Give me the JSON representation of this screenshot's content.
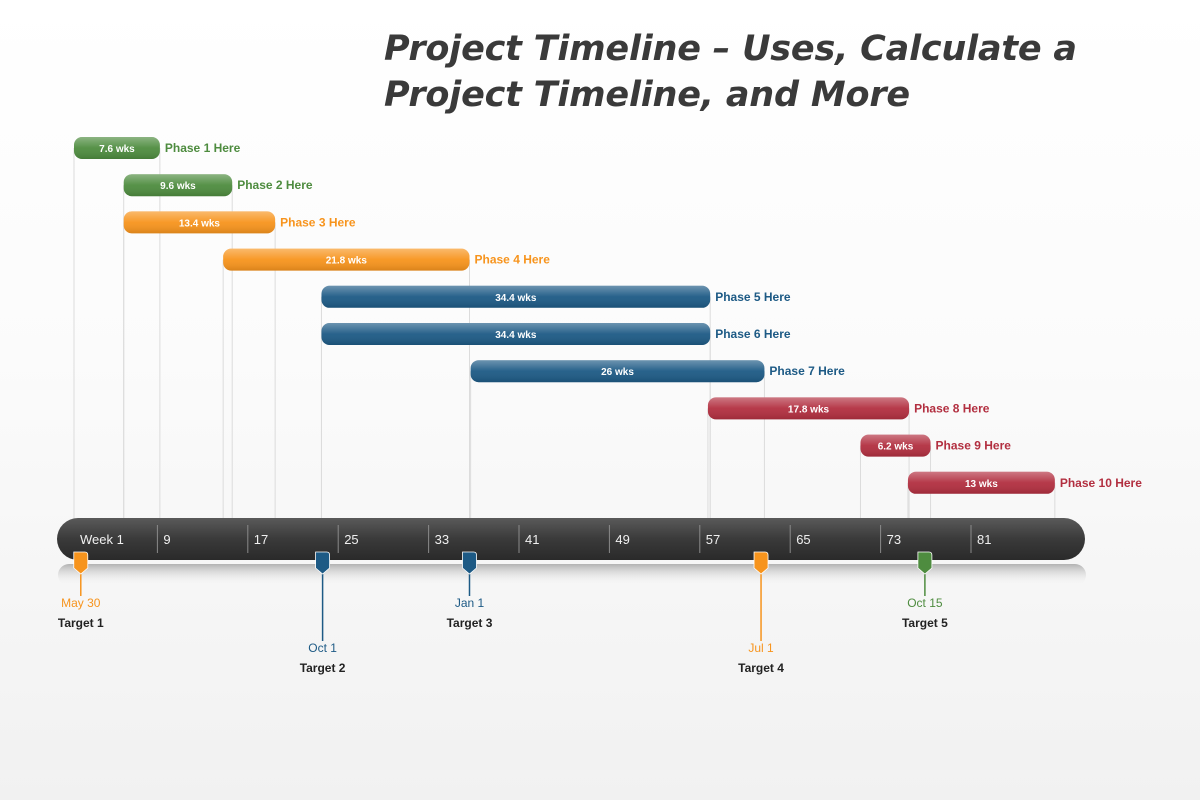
{
  "title": "Project Timeline – Uses, Calculate a Project Timeline, and More",
  "colors": {
    "green": "#4e8c3f",
    "orange": "#f7941d",
    "blue": "#1d5a85",
    "red": "#b22f40",
    "axis_band": "#3c3c3c",
    "gridline": "#dcdcdc"
  },
  "chart_data": {
    "type": "gantt",
    "axis_label_prefix": "Week",
    "x_ticks": [
      "1",
      "9",
      "17",
      "25",
      "33",
      "41",
      "49",
      "57",
      "65",
      "73",
      "81"
    ],
    "x_range": [
      1,
      89
    ],
    "phases": [
      {
        "name": "Phase 1 Here",
        "start": 1,
        "weeks": 7.6,
        "label": "7.6 wks",
        "color": "green"
      },
      {
        "name": "Phase 2 Here",
        "start": 5.4,
        "weeks": 9.6,
        "label": "9.6 wks",
        "color": "green"
      },
      {
        "name": "Phase 3 Here",
        "start": 5.4,
        "weeks": 13.4,
        "label": "13.4 wks",
        "color": "orange"
      },
      {
        "name": "Phase 4 Here",
        "start": 14.2,
        "weeks": 21.8,
        "label": "21.8 wks",
        "color": "orange"
      },
      {
        "name": "Phase 5 Here",
        "start": 22.9,
        "weeks": 34.4,
        "label": "34.4 wks",
        "color": "blue"
      },
      {
        "name": "Phase 6 Here",
        "start": 22.9,
        "weeks": 34.4,
        "label": "34.4 wks",
        "color": "blue"
      },
      {
        "name": "Phase 7 Here",
        "start": 36.1,
        "weeks": 26,
        "label": "26 wks",
        "color": "blue"
      },
      {
        "name": "Phase 8 Here",
        "start": 57.1,
        "weeks": 17.8,
        "label": "17.8 wks",
        "color": "red"
      },
      {
        "name": "Phase 9 Here",
        "start": 70.6,
        "weeks": 6.2,
        "label": "6.2 wks",
        "color": "red"
      },
      {
        "name": "Phase 10 Here",
        "start": 74.8,
        "weeks": 13,
        "label": "13 wks",
        "color": "red"
      }
    ],
    "milestones": [
      {
        "name": "Target 1",
        "date": "May 30",
        "week": 1.6,
        "color": "orange"
      },
      {
        "name": "Target 2",
        "date": "Oct 1",
        "week": 23,
        "color": "blue"
      },
      {
        "name": "Target 3",
        "date": "Jan 1",
        "week": 36,
        "color": "blue"
      },
      {
        "name": "Target 4",
        "date": "Jul 1",
        "week": 61.8,
        "color": "orange"
      },
      {
        "name": "Target 5",
        "date": "Oct 15",
        "week": 76.3,
        "color": "green"
      }
    ]
  }
}
